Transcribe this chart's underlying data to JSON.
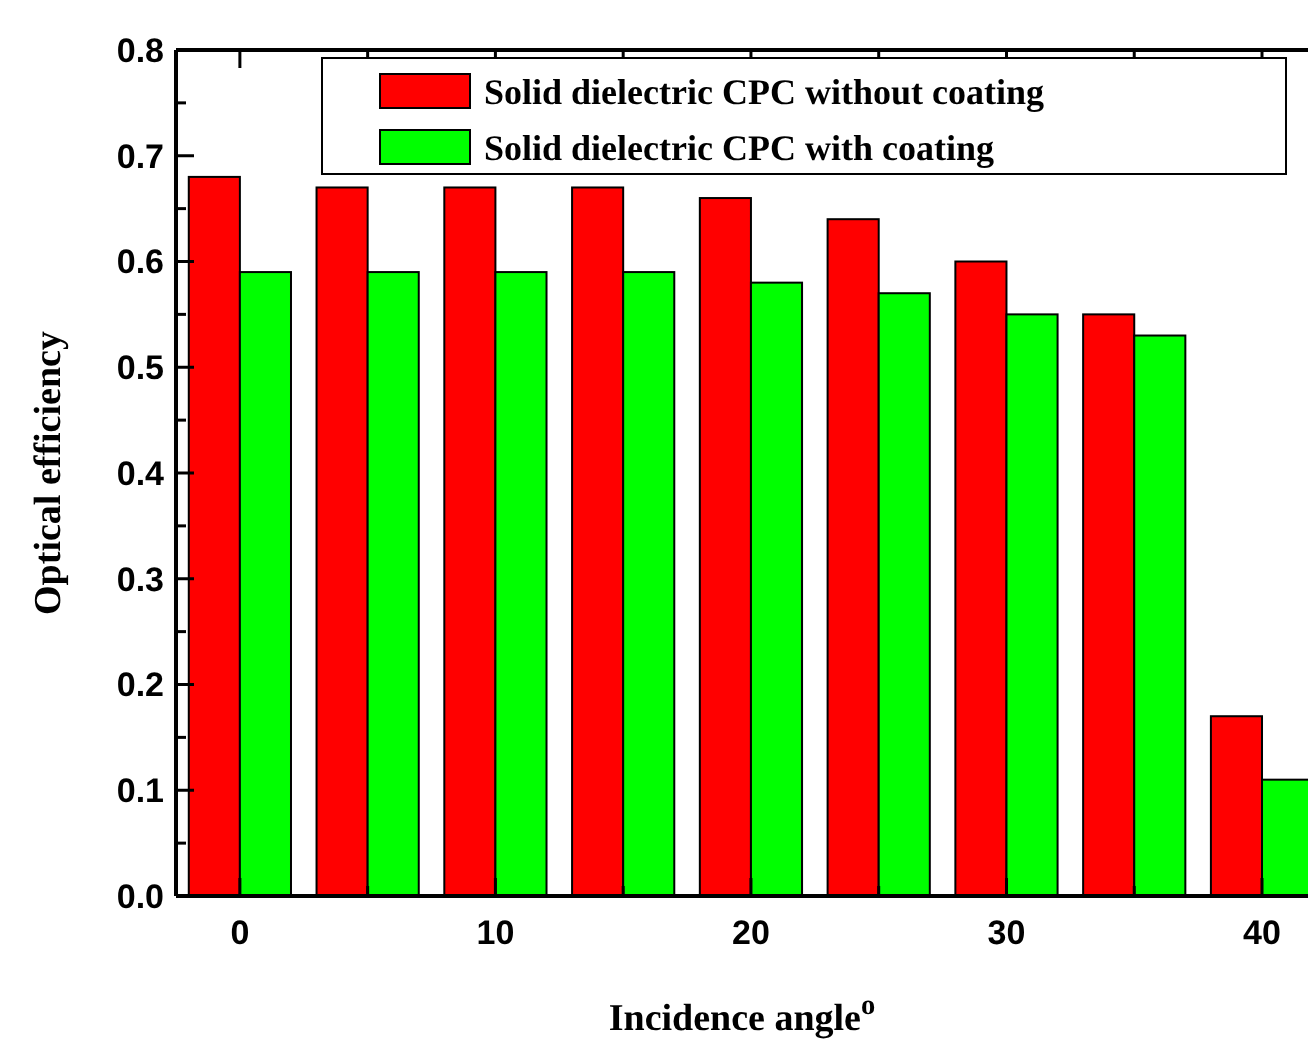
{
  "chart_data": {
    "type": "bar",
    "xlabel": "Incidence angle$^{o}$",
    "ylabel": "Optical efficiency",
    "x": [
      0,
      5,
      10,
      15,
      20,
      25,
      30,
      35,
      40
    ],
    "series": [
      {
        "name": "Solid dielectric CPC without coating",
        "color": "#ff0000",
        "values": [
          0.68,
          0.67,
          0.67,
          0.67,
          0.66,
          0.64,
          0.6,
          0.55,
          0.17
        ]
      },
      {
        "name": "Solid dielectric CPC with coating",
        "color": "#00ff00",
        "values": [
          0.59,
          0.59,
          0.59,
          0.59,
          0.58,
          0.57,
          0.55,
          0.53,
          0.11
        ]
      }
    ],
    "xlim": [
      -2.5,
      41.8
    ],
    "ylim": [
      0,
      0.8
    ],
    "xticks": [
      0,
      {
        "value": 5,
        "label": null
      },
      10,
      {
        "value": 15,
        "label": null
      },
      20,
      {
        "value": 25,
        "label": null
      },
      30,
      {
        "value": 35,
        "label": null
      },
      40
    ],
    "yticks": [
      "0.0",
      {
        "value": 0.05,
        "label": null
      },
      0.1,
      {
        "value": 0.15,
        "label": null
      },
      0.2,
      {
        "value": 0.25,
        "label": null
      },
      0.3,
      {
        "value": 0.35,
        "label": null
      },
      0.4,
      {
        "value": 0.45,
        "label": null
      },
      0.5,
      {
        "value": 0.55,
        "label": null
      },
      0.6,
      {
        "value": 0.65,
        "label": null
      },
      0.7,
      {
        "value": 0.75,
        "label": null
      },
      0.8
    ],
    "legend": "top right"
  }
}
